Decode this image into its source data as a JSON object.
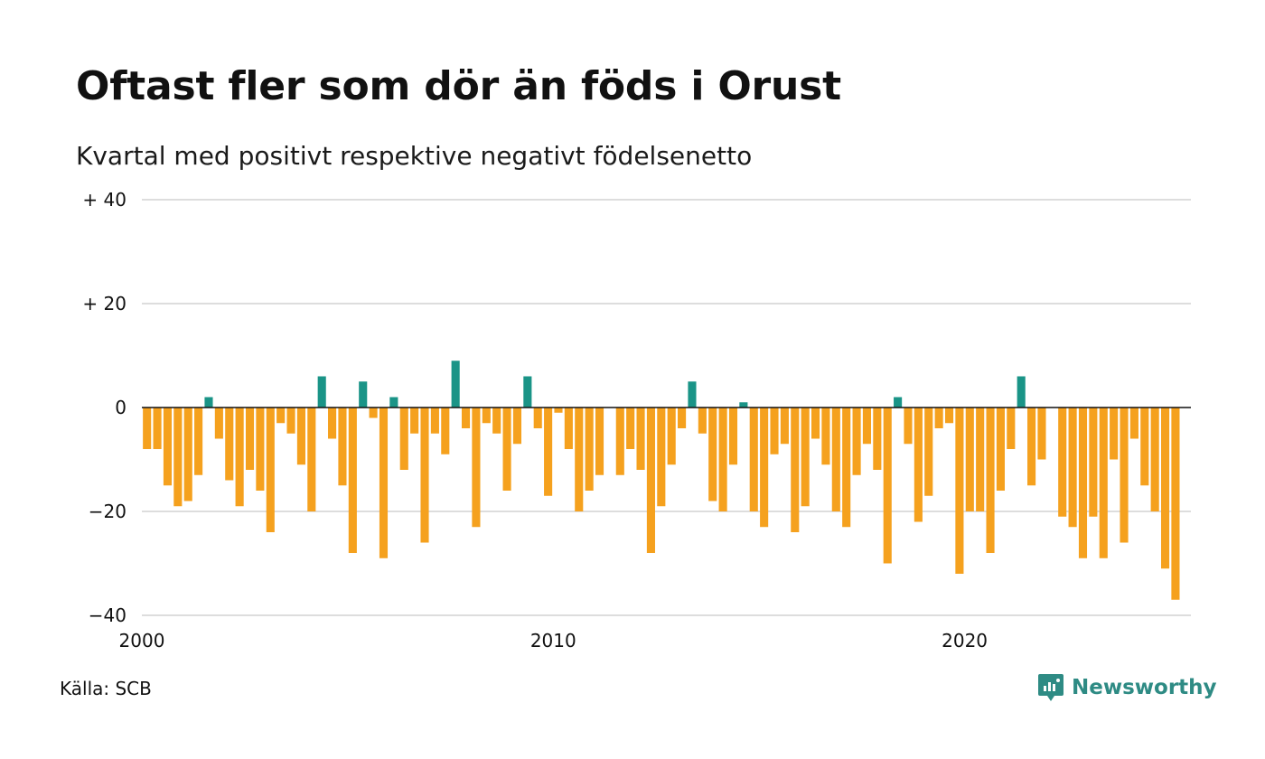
{
  "title": "Oftast fler som dör än föds i Orust",
  "subtitle": "Kvartal med positivt respektive negativt födelsenetto",
  "source": "Källa: SCB",
  "brand": "Newsworthy",
  "colors": {
    "positive": "#1a9487",
    "negative": "#f5a11e",
    "grid": "#dddddd",
    "axis": "#111111"
  },
  "chart_data": {
    "type": "bar",
    "title": "Oftast fler som dör än föds i Orust",
    "subtitle": "Kvartal med positivt respektive negativt födelsenetto",
    "xlabel": "",
    "ylabel": "",
    "ylim": [
      -40,
      40
    ],
    "xlim": [
      2000,
      2025.5
    ],
    "yticks": [
      {
        "value": 40,
        "label": "+ 40"
      },
      {
        "value": 20,
        "label": "+ 20"
      },
      {
        "value": 0,
        "label": "0"
      },
      {
        "value": -20,
        "label": "−20"
      },
      {
        "value": -40,
        "label": "−40"
      }
    ],
    "xticks": [
      {
        "value": 2000,
        "label": "2000"
      },
      {
        "value": 2010,
        "label": "2010"
      },
      {
        "value": 2020,
        "label": "2020"
      }
    ],
    "grid": true,
    "legend": "none",
    "first_quarter": "2000 Q1",
    "values": [
      -8,
      -8,
      -15,
      -19,
      -18,
      -13,
      2,
      -6,
      -14,
      -19,
      -12,
      -16,
      -24,
      -3,
      -5,
      -11,
      -20,
      6,
      -6,
      -15,
      -28,
      5,
      -2,
      -29,
      2,
      -12,
      -5,
      -26,
      -5,
      -9,
      9,
      -4,
      -23,
      -3,
      -5,
      -16,
      -7,
      6,
      -4,
      -17,
      -1,
      -8,
      -20,
      -16,
      -13,
      0,
      -13,
      -8,
      -12,
      -28,
      -19,
      -11,
      -4,
      5,
      -5,
      -18,
      -20,
      -11,
      1,
      -20,
      -23,
      -9,
      -7,
      -24,
      -19,
      -6,
      -11,
      -20,
      -23,
      -13,
      -7,
      -12,
      -30,
      2,
      -7,
      -22,
      -17,
      -4,
      -3,
      -32,
      -20,
      -20,
      -28,
      -16,
      -8,
      6,
      -15,
      -10,
      0,
      -21,
      -23,
      -29,
      -21,
      -29,
      -10,
      -26,
      -6,
      -15,
      -20,
      -31,
      -37
    ]
  }
}
